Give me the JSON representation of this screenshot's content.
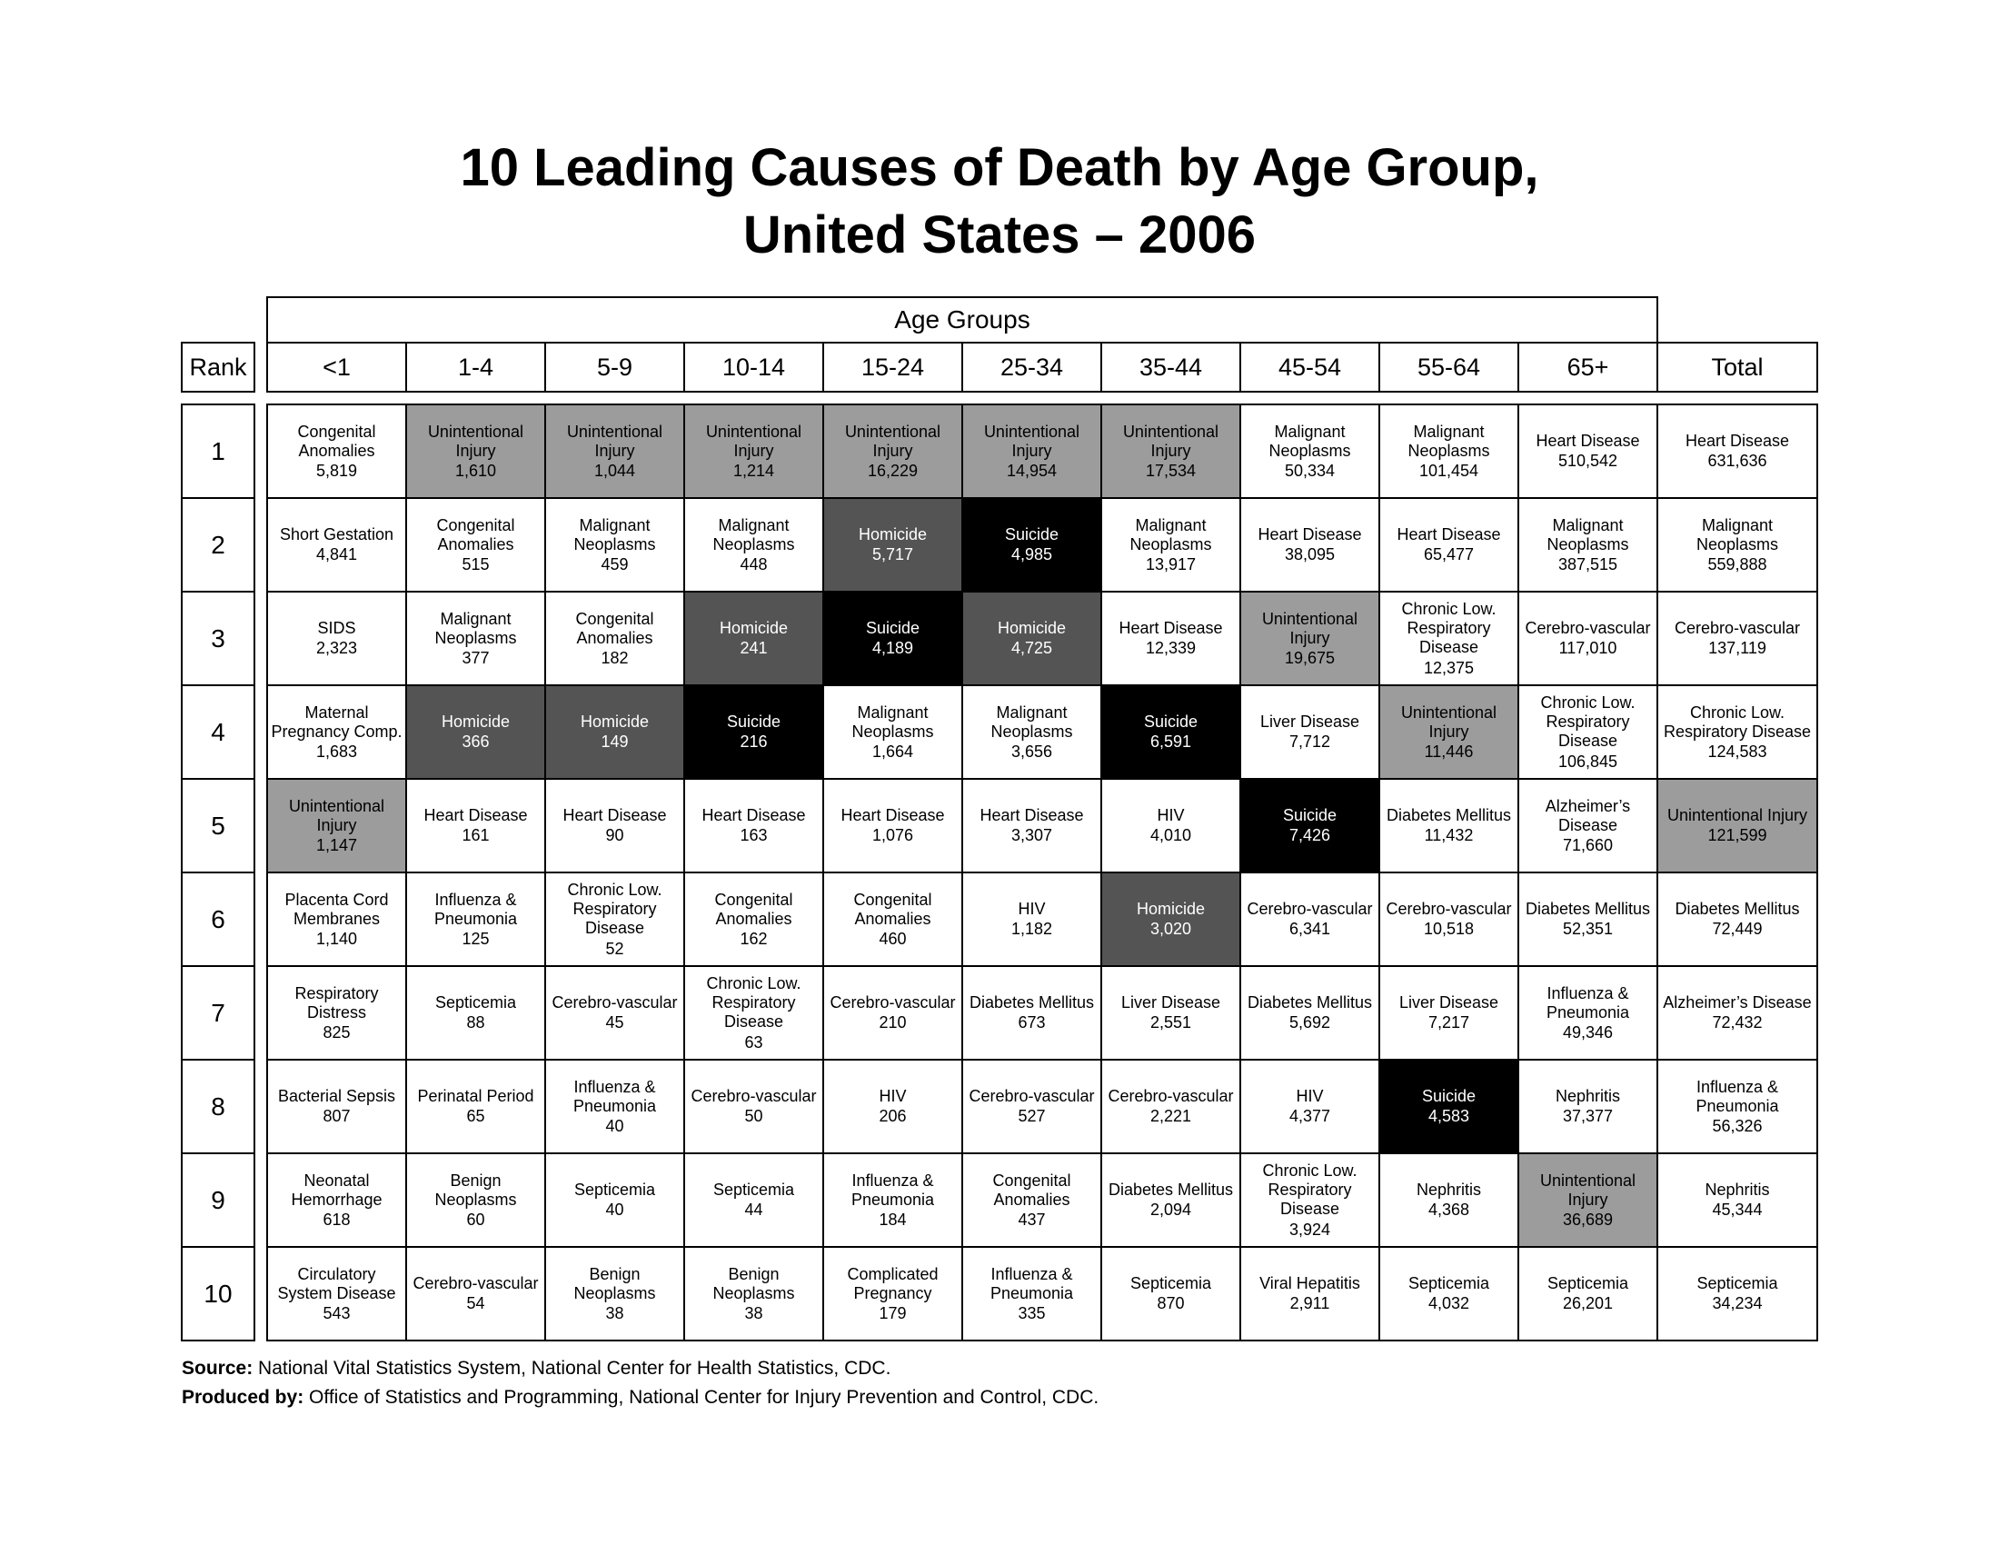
{
  "title": {
    "line1": "10 Leading Causes of Death by Age Group,",
    "line2": "United States – 2006"
  },
  "chart_data": {
    "type": "table",
    "title": "10 Leading Causes of Death by Age Group, United States – 2006",
    "age_groups_label": "Age Groups",
    "rank_label": "Rank",
    "columns": [
      "<1",
      "1-4",
      "5-9",
      "10-14",
      "15-24",
      "25-34",
      "35-44",
      "45-54",
      "55-64",
      "65+",
      "Total"
    ],
    "rows": [
      {
        "rank": "1",
        "cells": [
          {
            "cause": "Congenital Anomalies",
            "value": "5,819",
            "highlight": "none"
          },
          {
            "cause": "Unintentional Injury",
            "value": "1,610",
            "highlight": "unintentional"
          },
          {
            "cause": "Unintentional Injury",
            "value": "1,044",
            "highlight": "unintentional"
          },
          {
            "cause": "Unintentional Injury",
            "value": "1,214",
            "highlight": "unintentional"
          },
          {
            "cause": "Unintentional Injury",
            "value": "16,229",
            "highlight": "unintentional"
          },
          {
            "cause": "Unintentional Injury",
            "value": "14,954",
            "highlight": "unintentional"
          },
          {
            "cause": "Unintentional Injury",
            "value": "17,534",
            "highlight": "unintentional"
          },
          {
            "cause": "Malignant Neoplasms",
            "value": "50,334",
            "highlight": "none"
          },
          {
            "cause": "Malignant Neoplasms",
            "value": "101,454",
            "highlight": "none"
          },
          {
            "cause": "Heart Disease",
            "value": "510,542",
            "highlight": "none"
          },
          {
            "cause": "Heart Disease",
            "value": "631,636",
            "highlight": "none"
          }
        ]
      },
      {
        "rank": "2",
        "cells": [
          {
            "cause": "Short Gestation",
            "value": "4,841",
            "highlight": "none"
          },
          {
            "cause": "Congenital Anomalies",
            "value": "515",
            "highlight": "none"
          },
          {
            "cause": "Malignant Neoplasms",
            "value": "459",
            "highlight": "none"
          },
          {
            "cause": "Malignant Neoplasms",
            "value": "448",
            "highlight": "none"
          },
          {
            "cause": "Homicide",
            "value": "5,717",
            "highlight": "homicide"
          },
          {
            "cause": "Suicide",
            "value": "4,985",
            "highlight": "suicide"
          },
          {
            "cause": "Malignant Neoplasms",
            "value": "13,917",
            "highlight": "none"
          },
          {
            "cause": "Heart Disease",
            "value": "38,095",
            "highlight": "none"
          },
          {
            "cause": "Heart Disease",
            "value": "65,477",
            "highlight": "none"
          },
          {
            "cause": "Malignant Neoplasms",
            "value": "387,515",
            "highlight": "none"
          },
          {
            "cause": "Malignant Neoplasms",
            "value": "559,888",
            "highlight": "none"
          }
        ]
      },
      {
        "rank": "3",
        "cells": [
          {
            "cause": "SIDS",
            "value": "2,323",
            "highlight": "none"
          },
          {
            "cause": "Malignant Neoplasms",
            "value": "377",
            "highlight": "none"
          },
          {
            "cause": "Congenital Anomalies",
            "value": "182",
            "highlight": "none"
          },
          {
            "cause": "Homicide",
            "value": "241",
            "highlight": "homicide"
          },
          {
            "cause": "Suicide",
            "value": "4,189",
            "highlight": "suicide"
          },
          {
            "cause": "Homicide",
            "value": "4,725",
            "highlight": "homicide"
          },
          {
            "cause": "Heart Disease",
            "value": "12,339",
            "highlight": "none"
          },
          {
            "cause": "Unintentional Injury",
            "value": "19,675",
            "highlight": "unintentional"
          },
          {
            "cause": "Chronic Low. Respiratory Disease",
            "value": "12,375",
            "highlight": "none"
          },
          {
            "cause": "Cerebro-vascular",
            "value": "117,010",
            "highlight": "none"
          },
          {
            "cause": "Cerebro-vascular",
            "value": "137,119",
            "highlight": "none"
          }
        ]
      },
      {
        "rank": "4",
        "cells": [
          {
            "cause": "Maternal Pregnancy Comp.",
            "value": "1,683",
            "highlight": "none"
          },
          {
            "cause": "Homicide",
            "value": "366",
            "highlight": "homicide"
          },
          {
            "cause": "Homicide",
            "value": "149",
            "highlight": "homicide"
          },
          {
            "cause": "Suicide",
            "value": "216",
            "highlight": "suicide"
          },
          {
            "cause": "Malignant Neoplasms",
            "value": "1,664",
            "highlight": "none"
          },
          {
            "cause": "Malignant Neoplasms",
            "value": "3,656",
            "highlight": "none"
          },
          {
            "cause": "Suicide",
            "value": "6,591",
            "highlight": "suicide"
          },
          {
            "cause": "Liver Disease",
            "value": "7,712",
            "highlight": "none"
          },
          {
            "cause": "Unintentional Injury",
            "value": "11,446",
            "highlight": "unintentional"
          },
          {
            "cause": "Chronic Low. Respiratory Disease",
            "value": "106,845",
            "highlight": "none"
          },
          {
            "cause": "Chronic Low. Respiratory Disease",
            "value": "124,583",
            "highlight": "none"
          }
        ]
      },
      {
        "rank": "5",
        "cells": [
          {
            "cause": "Unintentional Injury",
            "value": "1,147",
            "highlight": "unintentional"
          },
          {
            "cause": "Heart Disease",
            "value": "161",
            "highlight": "none"
          },
          {
            "cause": "Heart Disease",
            "value": "90",
            "highlight": "none"
          },
          {
            "cause": "Heart Disease",
            "value": "163",
            "highlight": "none"
          },
          {
            "cause": "Heart Disease",
            "value": "1,076",
            "highlight": "none"
          },
          {
            "cause": "Heart Disease",
            "value": "3,307",
            "highlight": "none"
          },
          {
            "cause": "HIV",
            "value": "4,010",
            "highlight": "none"
          },
          {
            "cause": "Suicide",
            "value": "7,426",
            "highlight": "suicide"
          },
          {
            "cause": "Diabetes Mellitus",
            "value": "11,432",
            "highlight": "none"
          },
          {
            "cause": "Alzheimer’s Disease",
            "value": "71,660",
            "highlight": "none"
          },
          {
            "cause": "Unintentional Injury",
            "value": "121,599",
            "highlight": "unintentional"
          }
        ]
      },
      {
        "rank": "6",
        "cells": [
          {
            "cause": "Placenta Cord Membranes",
            "value": "1,140",
            "highlight": "none"
          },
          {
            "cause": "Influenza & Pneumonia",
            "value": "125",
            "highlight": "none"
          },
          {
            "cause": "Chronic Low. Respiratory Disease",
            "value": "52",
            "highlight": "none"
          },
          {
            "cause": "Congenital Anomalies",
            "value": "162",
            "highlight": "none"
          },
          {
            "cause": "Congenital Anomalies",
            "value": "460",
            "highlight": "none"
          },
          {
            "cause": "HIV",
            "value": "1,182",
            "highlight": "none"
          },
          {
            "cause": "Homicide",
            "value": "3,020",
            "highlight": "homicide"
          },
          {
            "cause": "Cerebro-vascular",
            "value": "6,341",
            "highlight": "none"
          },
          {
            "cause": "Cerebro-vascular",
            "value": "10,518",
            "highlight": "none"
          },
          {
            "cause": "Diabetes Mellitus",
            "value": "52,351",
            "highlight": "none"
          },
          {
            "cause": "Diabetes Mellitus",
            "value": "72,449",
            "highlight": "none"
          }
        ]
      },
      {
        "rank": "7",
        "cells": [
          {
            "cause": "Respiratory Distress",
            "value": "825",
            "highlight": "none"
          },
          {
            "cause": "Septicemia",
            "value": "88",
            "highlight": "none"
          },
          {
            "cause": "Cerebro-vascular",
            "value": "45",
            "highlight": "none"
          },
          {
            "cause": "Chronic Low. Respiratory Disease",
            "value": "63",
            "highlight": "none"
          },
          {
            "cause": "Cerebro-vascular",
            "value": "210",
            "highlight": "none"
          },
          {
            "cause": "Diabetes Mellitus",
            "value": "673",
            "highlight": "none"
          },
          {
            "cause": "Liver Disease",
            "value": "2,551",
            "highlight": "none"
          },
          {
            "cause": "Diabetes Mellitus",
            "value": "5,692",
            "highlight": "none"
          },
          {
            "cause": "Liver Disease",
            "value": "7,217",
            "highlight": "none"
          },
          {
            "cause": "Influenza & Pneumonia",
            "value": "49,346",
            "highlight": "none"
          },
          {
            "cause": "Alzheimer’s Disease",
            "value": "72,432",
            "highlight": "none"
          }
        ]
      },
      {
        "rank": "8",
        "cells": [
          {
            "cause": "Bacterial Sepsis",
            "value": "807",
            "highlight": "none"
          },
          {
            "cause": "Perinatal Period",
            "value": "65",
            "highlight": "none"
          },
          {
            "cause": "Influenza & Pneumonia",
            "value": "40",
            "highlight": "none"
          },
          {
            "cause": "Cerebro-vascular",
            "value": "50",
            "highlight": "none"
          },
          {
            "cause": "HIV",
            "value": "206",
            "highlight": "none"
          },
          {
            "cause": "Cerebro-vascular",
            "value": "527",
            "highlight": "none"
          },
          {
            "cause": "Cerebro-vascular",
            "value": "2,221",
            "highlight": "none"
          },
          {
            "cause": "HIV",
            "value": "4,377",
            "highlight": "none"
          },
          {
            "cause": "Suicide",
            "value": "4,583",
            "highlight": "suicide"
          },
          {
            "cause": "Nephritis",
            "value": "37,377",
            "highlight": "none"
          },
          {
            "cause": "Influenza & Pneumonia",
            "value": "56,326",
            "highlight": "none"
          }
        ]
      },
      {
        "rank": "9",
        "cells": [
          {
            "cause": "Neonatal Hemorrhage",
            "value": "618",
            "highlight": "none"
          },
          {
            "cause": "Benign Neoplasms",
            "value": "60",
            "highlight": "none"
          },
          {
            "cause": "Septicemia",
            "value": "40",
            "highlight": "none"
          },
          {
            "cause": "Septicemia",
            "value": "44",
            "highlight": "none"
          },
          {
            "cause": "Influenza & Pneumonia",
            "value": "184",
            "highlight": "none"
          },
          {
            "cause": "Congenital Anomalies",
            "value": "437",
            "highlight": "none"
          },
          {
            "cause": "Diabetes Mellitus",
            "value": "2,094",
            "highlight": "none"
          },
          {
            "cause": "Chronic Low. Respiratory Disease",
            "value": "3,924",
            "highlight": "none"
          },
          {
            "cause": "Nephritis",
            "value": "4,368",
            "highlight": "none"
          },
          {
            "cause": "Unintentional Injury",
            "value": "36,689",
            "highlight": "unintentional"
          },
          {
            "cause": "Nephritis",
            "value": "45,344",
            "highlight": "none"
          }
        ]
      },
      {
        "rank": "10",
        "cells": [
          {
            "cause": "Circulatory System Disease",
            "value": "543",
            "highlight": "none"
          },
          {
            "cause": "Cerebro-vascular",
            "value": "54",
            "highlight": "none"
          },
          {
            "cause": "Benign Neoplasms",
            "value": "38",
            "highlight": "none"
          },
          {
            "cause": "Benign Neoplasms",
            "value": "38",
            "highlight": "none"
          },
          {
            "cause": "Complicated Pregnancy",
            "value": "179",
            "highlight": "none"
          },
          {
            "cause": "Influenza & Pneumonia",
            "value": "335",
            "highlight": "none"
          },
          {
            "cause": "Septicemia",
            "value": "870",
            "highlight": "none"
          },
          {
            "cause": "Viral Hepatitis",
            "value": "2,911",
            "highlight": "none"
          },
          {
            "cause": "Septicemia",
            "value": "4,032",
            "highlight": "none"
          },
          {
            "cause": "Septicemia",
            "value": "26,201",
            "highlight": "none"
          },
          {
            "cause": "Septicemia",
            "value": "34,234",
            "highlight": "none"
          }
        ]
      }
    ]
  },
  "footer": {
    "source_label": "Source:",
    "source_text": "National Vital Statistics System, National Center for Health Statistics, CDC.",
    "produced_label": "Produced by:",
    "produced_text": "Office of Statistics and Programming, National Center for Injury Prevention and Control, CDC."
  },
  "colors": {
    "unintentional_bg": "#9c9c9c",
    "homicide_bg": "#545454",
    "suicide_bg": "#000000",
    "border": "#000000",
    "background": "#ffffff",
    "text": "#000000"
  }
}
